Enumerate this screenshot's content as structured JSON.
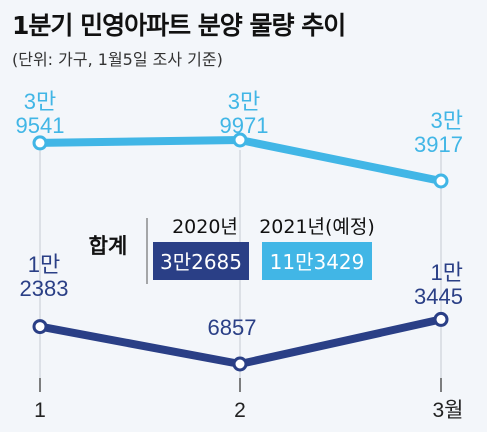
{
  "header": {
    "title": "1분기 민영아파트 분양 물량 추이",
    "subtitle": "(단위: 가구, 1월5일 조사 기준)"
  },
  "chart_data": {
    "type": "line",
    "x": [
      "1",
      "2",
      "3월"
    ],
    "series": [
      {
        "key": "y2021",
        "values": [
          39541,
          39971,
          33917
        ],
        "labels": [
          [
            "3만",
            "9541"
          ],
          [
            "3만",
            "9971"
          ],
          [
            "3만",
            "3917"
          ]
        ],
        "color": "#41b6e6"
      },
      {
        "key": "y2020",
        "values": [
          12383,
          6857,
          13445
        ],
        "labels": [
          [
            "1만",
            "2383"
          ],
          [
            "6857"
          ],
          [
            "1만",
            "3445"
          ]
        ],
        "color": "#2a3f86"
      }
    ],
    "totals_table": {
      "row_label": "합계",
      "columns": [
        {
          "header": "2020년",
          "value": "3만2685",
          "color": "#2a3f86"
        },
        {
          "header": "2021년(예정)",
          "value": "11만3429",
          "color": "#41b6e6"
        }
      ]
    },
    "grid": true
  }
}
